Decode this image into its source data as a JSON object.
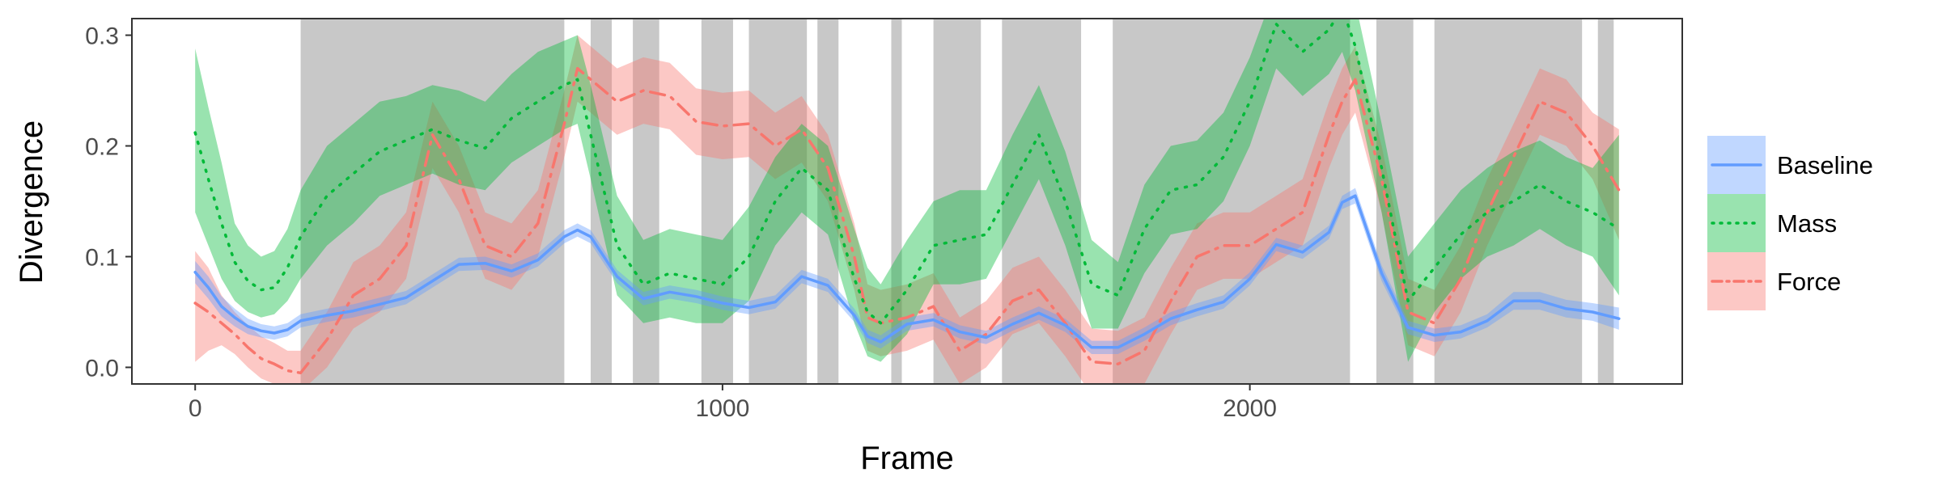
{
  "chart_data": {
    "type": "line",
    "title": "",
    "xlabel": "Frame",
    "ylabel": "Divergence",
    "xlim": [
      -120,
      2820
    ],
    "ylim": [
      -0.015,
      0.315
    ],
    "x_ticks": [
      0,
      1000,
      2000
    ],
    "x_tick_labels": [
      "0",
      "1000",
      "2000"
    ],
    "y_ticks": [
      0.0,
      0.1,
      0.2,
      0.3
    ],
    "y_tick_labels": [
      "0.0",
      "0.1",
      "0.2",
      "0.3"
    ],
    "grid": false,
    "legend_position": "right",
    "shaded_intervals": [
      [
        200,
        700
      ],
      [
        750,
        790
      ],
      [
        830,
        880
      ],
      [
        960,
        1020
      ],
      [
        1050,
        1160
      ],
      [
        1180,
        1220
      ],
      [
        1320,
        1340
      ],
      [
        1400,
        1490
      ],
      [
        1530,
        1680
      ],
      [
        1740,
        2190
      ],
      [
        2240,
        2310
      ],
      [
        2350,
        2630
      ],
      [
        2660,
        2690
      ]
    ],
    "x": [
      0,
      25,
      50,
      75,
      100,
      125,
      150,
      175,
      200,
      250,
      300,
      350,
      400,
      450,
      500,
      550,
      600,
      650,
      700,
      725,
      750,
      800,
      850,
      900,
      950,
      1000,
      1050,
      1100,
      1150,
      1200,
      1250,
      1275,
      1300,
      1350,
      1400,
      1450,
      1500,
      1550,
      1600,
      1650,
      1700,
      1750,
      1800,
      1850,
      1900,
      1950,
      2000,
      2050,
      2100,
      2150,
      2175,
      2200,
      2250,
      2300,
      2350,
      2400,
      2450,
      2500,
      2550,
      2600,
      2650,
      2700
    ],
    "series": [
      {
        "name": "Baseline",
        "color": "#619CFF",
        "dash": "solid",
        "values": [
          0.086,
          0.072,
          0.055,
          0.045,
          0.037,
          0.033,
          0.031,
          0.034,
          0.042,
          0.047,
          0.051,
          0.057,
          0.063,
          0.078,
          0.093,
          0.094,
          0.087,
          0.097,
          0.118,
          0.124,
          0.118,
          0.082,
          0.062,
          0.068,
          0.064,
          0.058,
          0.054,
          0.059,
          0.082,
          0.074,
          0.047,
          0.028,
          0.023,
          0.039,
          0.043,
          0.032,
          0.027,
          0.039,
          0.049,
          0.038,
          0.018,
          0.018,
          0.03,
          0.044,
          0.052,
          0.059,
          0.08,
          0.111,
          0.104,
          0.122,
          0.149,
          0.155,
          0.085,
          0.036,
          0.029,
          0.032,
          0.042,
          0.06,
          0.06,
          0.053,
          0.05,
          0.044
        ],
        "lower": [
          0.076,
          0.062,
          0.046,
          0.037,
          0.03,
          0.027,
          0.025,
          0.028,
          0.036,
          0.041,
          0.045,
          0.051,
          0.057,
          0.072,
          0.087,
          0.088,
          0.081,
          0.091,
          0.112,
          0.118,
          0.112,
          0.076,
          0.056,
          0.062,
          0.058,
          0.052,
          0.048,
          0.053,
          0.076,
          0.068,
          0.041,
          0.022,
          0.017,
          0.033,
          0.037,
          0.026,
          0.021,
          0.033,
          0.043,
          0.032,
          0.012,
          0.012,
          0.024,
          0.038,
          0.046,
          0.053,
          0.074,
          0.105,
          0.098,
          0.116,
          0.143,
          0.148,
          0.078,
          0.03,
          0.023,
          0.026,
          0.036,
          0.052,
          0.052,
          0.045,
          0.042,
          0.034
        ],
        "upper": [
          0.096,
          0.082,
          0.064,
          0.053,
          0.044,
          0.039,
          0.037,
          0.04,
          0.048,
          0.053,
          0.057,
          0.063,
          0.069,
          0.084,
          0.099,
          0.1,
          0.093,
          0.103,
          0.124,
          0.13,
          0.124,
          0.088,
          0.068,
          0.074,
          0.07,
          0.064,
          0.06,
          0.065,
          0.088,
          0.08,
          0.053,
          0.034,
          0.029,
          0.045,
          0.049,
          0.038,
          0.033,
          0.045,
          0.055,
          0.044,
          0.024,
          0.024,
          0.036,
          0.05,
          0.058,
          0.065,
          0.086,
          0.117,
          0.11,
          0.128,
          0.155,
          0.162,
          0.092,
          0.042,
          0.035,
          0.038,
          0.048,
          0.068,
          0.068,
          0.061,
          0.058,
          0.054
        ]
      },
      {
        "name": "Mass",
        "color": "#00BA38",
        "dash": "dotted",
        "values": [
          0.212,
          0.17,
          0.13,
          0.095,
          0.078,
          0.07,
          0.072,
          0.09,
          0.118,
          0.155,
          0.175,
          0.195,
          0.205,
          0.215,
          0.205,
          0.198,
          0.225,
          0.24,
          0.255,
          0.26,
          0.21,
          0.11,
          0.075,
          0.085,
          0.08,
          0.075,
          0.1,
          0.15,
          0.18,
          0.16,
          0.08,
          0.05,
          0.04,
          0.07,
          0.11,
          0.115,
          0.12,
          0.165,
          0.21,
          0.15,
          0.075,
          0.065,
          0.125,
          0.16,
          0.165,
          0.19,
          0.24,
          0.31,
          0.285,
          0.305,
          0.325,
          0.29,
          0.18,
          0.06,
          0.09,
          0.12,
          0.14,
          0.15,
          0.165,
          0.15,
          0.14,
          0.125
        ],
        "lower": [
          0.14,
          0.11,
          0.08,
          0.06,
          0.05,
          0.045,
          0.048,
          0.06,
          0.08,
          0.11,
          0.13,
          0.155,
          0.165,
          0.175,
          0.165,
          0.16,
          0.185,
          0.2,
          0.215,
          0.22,
          0.17,
          0.065,
          0.04,
          0.045,
          0.04,
          0.04,
          0.06,
          0.11,
          0.14,
          0.12,
          0.04,
          0.01,
          0.005,
          0.03,
          0.075,
          0.075,
          0.08,
          0.125,
          0.17,
          0.11,
          0.035,
          0.035,
          0.085,
          0.12,
          0.125,
          0.15,
          0.2,
          0.27,
          0.245,
          0.265,
          0.285,
          0.25,
          0.14,
          0.005,
          0.05,
          0.08,
          0.1,
          0.11,
          0.125,
          0.11,
          0.1,
          0.065
        ],
        "upper": [
          0.288,
          0.235,
          0.185,
          0.13,
          0.11,
          0.1,
          0.105,
          0.125,
          0.16,
          0.2,
          0.22,
          0.24,
          0.245,
          0.255,
          0.25,
          0.24,
          0.265,
          0.285,
          0.295,
          0.3,
          0.255,
          0.155,
          0.115,
          0.125,
          0.12,
          0.115,
          0.145,
          0.19,
          0.22,
          0.2,
          0.125,
          0.09,
          0.075,
          0.115,
          0.15,
          0.16,
          0.16,
          0.21,
          0.255,
          0.195,
          0.115,
          0.095,
          0.165,
          0.2,
          0.205,
          0.23,
          0.28,
          0.345,
          0.325,
          0.345,
          0.365,
          0.33,
          0.22,
          0.1,
          0.13,
          0.16,
          0.18,
          0.195,
          0.205,
          0.19,
          0.18,
          0.21
        ]
      },
      {
        "name": "Force",
        "color": "#F8766D",
        "dash": "dashdot",
        "values": [
          0.058,
          0.05,
          0.04,
          0.03,
          0.018,
          0.008,
          0.003,
          -0.003,
          -0.005,
          0.025,
          0.065,
          0.08,
          0.11,
          0.21,
          0.17,
          0.11,
          0.1,
          0.13,
          0.22,
          0.27,
          0.26,
          0.24,
          0.25,
          0.245,
          0.222,
          0.218,
          0.22,
          0.2,
          0.215,
          0.18,
          0.1,
          0.045,
          0.04,
          0.045,
          0.055,
          0.015,
          0.03,
          0.06,
          0.07,
          0.04,
          0.005,
          0.003,
          0.015,
          0.06,
          0.1,
          0.11,
          0.11,
          0.125,
          0.14,
          0.21,
          0.24,
          0.26,
          0.17,
          0.05,
          0.04,
          0.08,
          0.14,
          0.19,
          0.24,
          0.23,
          0.2,
          0.16
        ],
        "lower": [
          0.005,
          0.015,
          0.02,
          0.012,
          0.0,
          -0.01,
          -0.015,
          -0.02,
          -0.022,
          0.0,
          0.035,
          0.05,
          0.08,
          0.18,
          0.14,
          0.08,
          0.07,
          0.1,
          0.19,
          0.24,
          0.23,
          0.21,
          0.22,
          0.215,
          0.192,
          0.188,
          0.19,
          0.17,
          0.185,
          0.15,
          0.07,
          0.015,
          0.01,
          0.015,
          0.025,
          -0.015,
          0.0,
          0.03,
          0.04,
          0.01,
          -0.025,
          -0.027,
          -0.015,
          0.03,
          0.07,
          0.08,
          0.08,
          0.095,
          0.11,
          0.18,
          0.21,
          0.23,
          0.14,
          0.02,
          0.01,
          0.05,
          0.11,
          0.16,
          0.21,
          0.2,
          0.17,
          0.115
        ],
        "upper": [
          0.105,
          0.09,
          0.065,
          0.05,
          0.038,
          0.028,
          0.022,
          0.015,
          0.015,
          0.05,
          0.095,
          0.11,
          0.14,
          0.24,
          0.2,
          0.14,
          0.13,
          0.16,
          0.25,
          0.3,
          0.29,
          0.27,
          0.28,
          0.275,
          0.252,
          0.248,
          0.25,
          0.23,
          0.245,
          0.21,
          0.13,
          0.075,
          0.07,
          0.075,
          0.085,
          0.045,
          0.06,
          0.09,
          0.1,
          0.07,
          0.035,
          0.033,
          0.045,
          0.09,
          0.13,
          0.14,
          0.14,
          0.155,
          0.17,
          0.24,
          0.27,
          0.29,
          0.2,
          0.08,
          0.07,
          0.11,
          0.17,
          0.22,
          0.27,
          0.26,
          0.23,
          0.215
        ]
      }
    ]
  }
}
